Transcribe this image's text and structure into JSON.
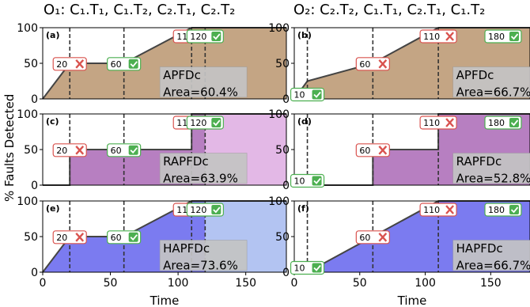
{
  "titles": {
    "left": "O₁: C₁.T₁, C₁.T₂, C₂.T₁, C₂.T₂",
    "right": "O₂: C₂.T₂, C₁.T₁, C₂.T₁, C₁.T₂"
  },
  "ylabel": "% Faults Detected",
  "xlabel": "Time",
  "chart_data": [
    {
      "type": "area",
      "panel": "(a)",
      "metric": "APFDc",
      "area_label": "Area=60.4%",
      "x": [
        0,
        20,
        20,
        60,
        110,
        120,
        180
      ],
      "y": [
        0,
        50,
        50,
        50,
        100,
        100,
        100
      ],
      "fill": "#c4a584",
      "post_fill": "#c4a584",
      "xlim": [
        0,
        180
      ],
      "ylim": [
        0,
        100
      ],
      "xticks": [],
      "yticks": [
        0,
        50,
        100
      ],
      "markers": [
        {
          "label": "20",
          "ok": false,
          "x": 20
        },
        {
          "label": "60",
          "ok": true,
          "x": 60
        },
        {
          "label": "110",
          "ok": false,
          "x": 110
        },
        {
          "label": "120",
          "ok": true,
          "x": 120
        }
      ]
    },
    {
      "type": "area",
      "panel": "(b)",
      "metric": "APFDc",
      "area_label": "Area=66.7%",
      "x": [
        0,
        10,
        60,
        110,
        120,
        180
      ],
      "y": [
        0,
        25,
        50,
        100,
        100,
        100
      ],
      "fill": "#c4a584",
      "post_fill": "#c4a584",
      "xlim": [
        0,
        180
      ],
      "ylim": [
        0,
        100
      ],
      "xticks": [],
      "yticks": [
        0,
        50,
        100
      ],
      "markers": [
        {
          "label": "10",
          "ok": true,
          "x": 10
        },
        {
          "label": "60",
          "ok": false,
          "x": 60
        },
        {
          "label": "110",
          "ok": false,
          "x": 110
        },
        {
          "label": "180",
          "ok": true,
          "x": 180
        }
      ]
    },
    {
      "type": "area",
      "panel": "(c)",
      "metric": "RAPFDc",
      "area_label": "Area=63.9%",
      "x": [
        0,
        20,
        20,
        110,
        110,
        120,
        180
      ],
      "y": [
        0,
        0,
        50,
        50,
        100,
        100,
        100
      ],
      "fill": "#b77fc1",
      "post_fill": "#e3b8e6",
      "xlim": [
        0,
        180
      ],
      "ylim": [
        0,
        100
      ],
      "xticks": [],
      "yticks": [
        0,
        50,
        100
      ],
      "markers": [
        {
          "label": "20",
          "ok": false,
          "x": 20
        },
        {
          "label": "60",
          "ok": true,
          "x": 60
        },
        {
          "label": "110",
          "ok": false,
          "x": 110
        },
        {
          "label": "120",
          "ok": true,
          "x": 120
        }
      ]
    },
    {
      "type": "area",
      "panel": "(d)",
      "metric": "RAPFDc",
      "area_label": "Area=52.8%",
      "x": [
        0,
        60,
        60,
        110,
        110,
        180
      ],
      "y": [
        0,
        0,
        50,
        50,
        100,
        100
      ],
      "fill": "#b77fc1",
      "post_fill": "#b77fc1",
      "xlim": [
        0,
        180
      ],
      "ylim": [
        0,
        100
      ],
      "xticks": [],
      "yticks": [
        0,
        50,
        100
      ],
      "markers": [
        {
          "label": "10",
          "ok": true,
          "x": 10
        },
        {
          "label": "60",
          "ok": false,
          "x": 60
        },
        {
          "label": "110",
          "ok": false,
          "x": 110
        },
        {
          "label": "180",
          "ok": true,
          "x": 180
        }
      ]
    },
    {
      "type": "area",
      "panel": "(e)",
      "metric": "HAPFDc",
      "area_label": "Area=73.6%",
      "x": [
        0,
        20,
        60,
        110,
        110,
        120,
        180
      ],
      "y": [
        0,
        50,
        50,
        100,
        100,
        100,
        100
      ],
      "fill": "#7b7bf0",
      "post_fill": "#b3c4f2",
      "xlim": [
        0,
        180
      ],
      "ylim": [
        0,
        100
      ],
      "xticks": [
        0,
        50,
        100,
        150
      ],
      "yticks": [
        0,
        50,
        100
      ],
      "markers": [
        {
          "label": "20",
          "ok": false,
          "x": 20
        },
        {
          "label": "60",
          "ok": true,
          "x": 60
        },
        {
          "label": "110",
          "ok": false,
          "x": 110
        },
        {
          "label": "120",
          "ok": true,
          "x": 120
        }
      ]
    },
    {
      "type": "area",
      "panel": "(f)",
      "metric": "HAPFDc",
      "area_label": "Area=66.7%",
      "x": [
        0,
        10,
        60,
        110,
        180
      ],
      "y": [
        0,
        0,
        50,
        100,
        100
      ],
      "fill": "#7b7bf0",
      "post_fill": "#7b7bf0",
      "xlim": [
        0,
        180
      ],
      "ylim": [
        0,
        100
      ],
      "xticks": [
        0,
        50,
        100,
        150
      ],
      "yticks": [
        0,
        50,
        100
      ],
      "markers": [
        {
          "label": "10",
          "ok": true,
          "x": 10
        },
        {
          "label": "60",
          "ok": false,
          "x": 60
        },
        {
          "label": "110",
          "ok": false,
          "x": 110
        },
        {
          "label": "180",
          "ok": true,
          "x": 180
        }
      ]
    }
  ]
}
